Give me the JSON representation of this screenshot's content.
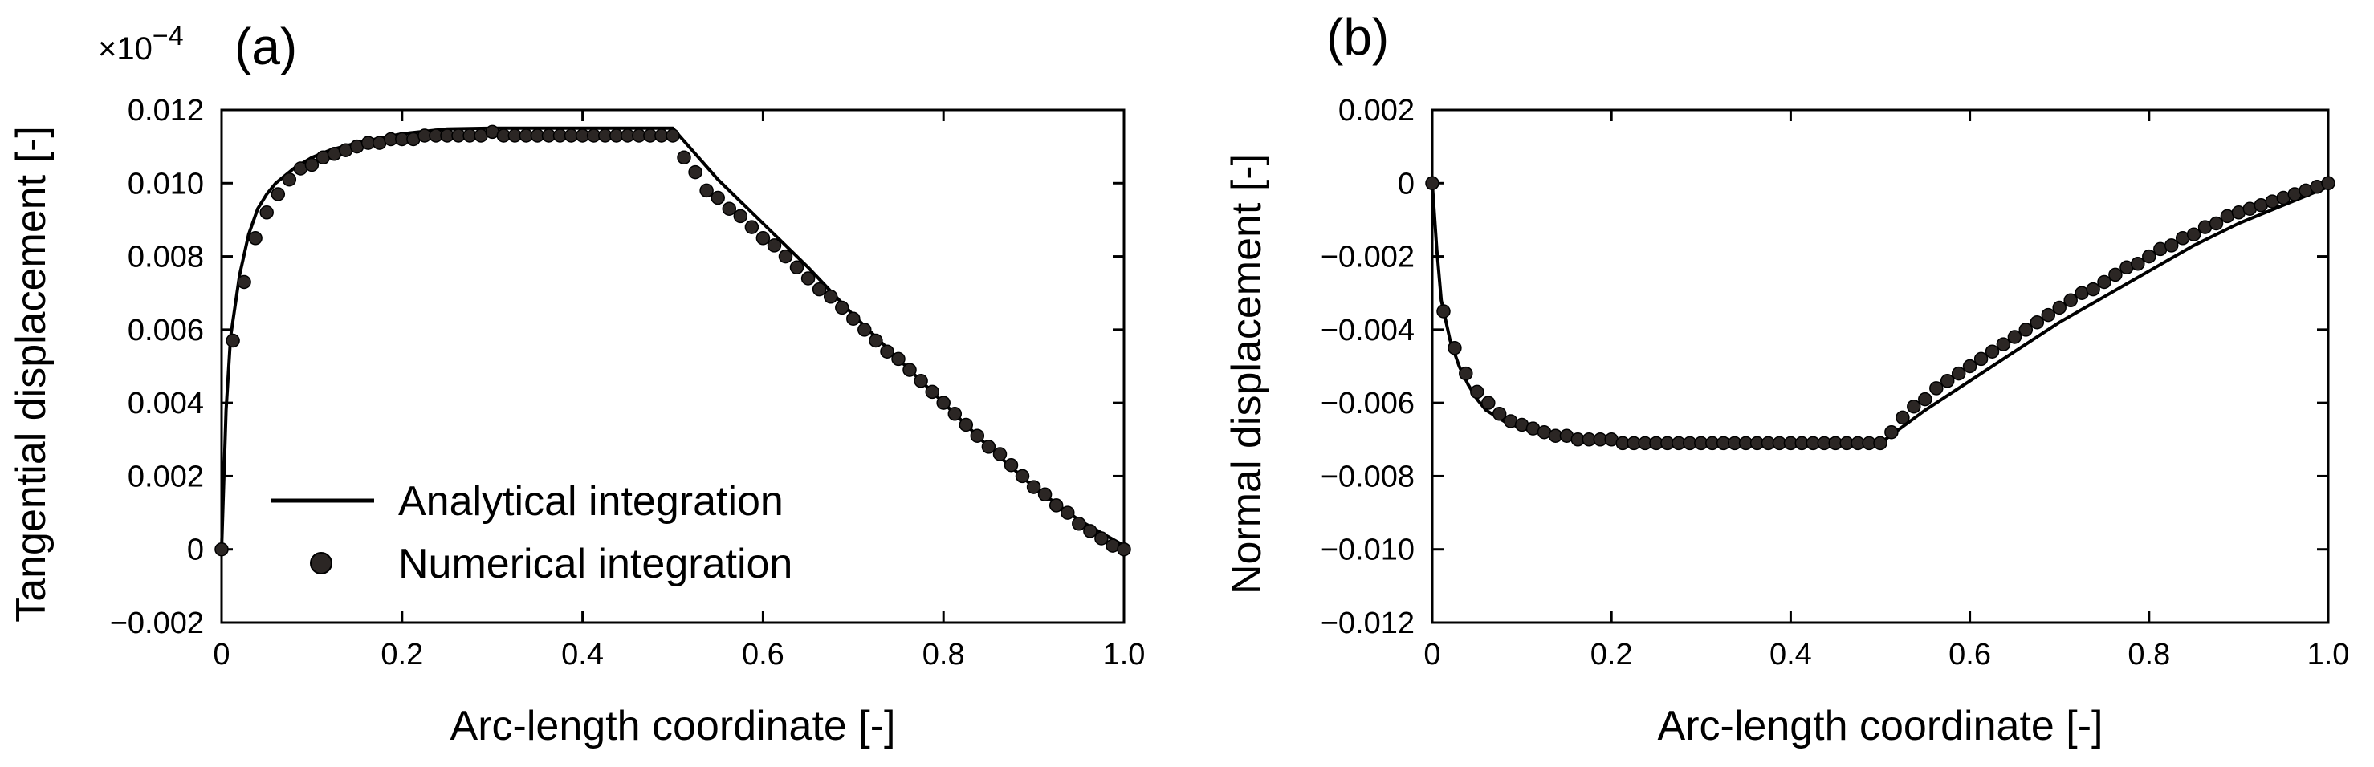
{
  "figure": {
    "panel_a_label": "(a)",
    "panel_b_label": "(b)",
    "multiplier_base": "×10",
    "multiplier_exponent": "−4"
  },
  "legend": {
    "analytical_label": "Analytical integration",
    "numerical_label": "Numerical integration"
  },
  "chart_data": [
    {
      "type": "line",
      "panel": "(a)",
      "title": "",
      "xlabel": "Arc-length coordinate [-]",
      "ylabel": "Tangential displacement [-]",
      "y_multiplier": "×10^-4",
      "xlim": [
        0,
        1.0
      ],
      "ylim": [
        -0.002,
        0.012
      ],
      "x_tick_labels": [
        "0",
        "0.2",
        "0.4",
        "0.6",
        "0.8",
        "1.0"
      ],
      "y_tick_labels": [
        "−0.002",
        "0",
        "0.002",
        "0.004",
        "0.006",
        "0.008",
        "0.010",
        "0.012"
      ],
      "grid": false,
      "legend_position": "bottom-left",
      "series": [
        {
          "name": "Analytical integration",
          "style": "line",
          "x": [
            0,
            0.005,
            0.01,
            0.02,
            0.03,
            0.04,
            0.05,
            0.06,
            0.08,
            0.1,
            0.12,
            0.15,
            0.2,
            0.25,
            0.3,
            0.35,
            0.4,
            0.45,
            0.49,
            0.5,
            0.55,
            0.6,
            0.65,
            0.7,
            0.75,
            0.8,
            0.85,
            0.9,
            0.95,
            1.0
          ],
          "y": [
            0,
            0.0038,
            0.0058,
            0.0075,
            0.0086,
            0.0093,
            0.0097,
            0.01,
            0.0104,
            0.0107,
            0.0109,
            0.0111,
            0.01135,
            0.01148,
            0.0115,
            0.0115,
            0.0115,
            0.0115,
            0.0115,
            0.0115,
            0.0101,
            0.0089,
            0.0077,
            0.0064,
            0.0052,
            0.004,
            0.0028,
            0.0017,
            0.0008,
            0.0001
          ]
        },
        {
          "name": "Numerical integration",
          "style": "markers",
          "x": [
            0,
            0.0125,
            0.025,
            0.0375,
            0.05,
            0.0625,
            0.075,
            0.0875,
            0.1,
            0.1125,
            0.125,
            0.1375,
            0.15,
            0.1625,
            0.175,
            0.1875,
            0.2,
            0.2125,
            0.225,
            0.2375,
            0.25,
            0.2625,
            0.275,
            0.2875,
            0.3,
            0.3125,
            0.325,
            0.3375,
            0.35,
            0.3625,
            0.375,
            0.3875,
            0.4,
            0.4125,
            0.425,
            0.4375,
            0.45,
            0.4625,
            0.475,
            0.4875,
            0.5,
            0.5125,
            0.525,
            0.5375,
            0.55,
            0.5625,
            0.575,
            0.5875,
            0.6,
            0.6125,
            0.625,
            0.6375,
            0.65,
            0.6625,
            0.675,
            0.6875,
            0.7,
            0.7125,
            0.725,
            0.7375,
            0.75,
            0.7625,
            0.775,
            0.7875,
            0.8,
            0.8125,
            0.825,
            0.8375,
            0.85,
            0.8625,
            0.875,
            0.8875,
            0.9,
            0.9125,
            0.925,
            0.9375,
            0.95,
            0.9625,
            0.975,
            0.9875,
            1.0
          ],
          "y": [
            0,
            0.0057,
            0.0073,
            0.0085,
            0.0092,
            0.0097,
            0.0101,
            0.0104,
            0.0105,
            0.0107,
            0.0108,
            0.0109,
            0.011,
            0.0111,
            0.0111,
            0.0112,
            0.0112,
            0.0112,
            0.0113,
            0.0113,
            0.0113,
            0.0113,
            0.0113,
            0.0113,
            0.0114,
            0.0113,
            0.0113,
            0.0113,
            0.0113,
            0.0113,
            0.0113,
            0.0113,
            0.0113,
            0.0113,
            0.0113,
            0.0113,
            0.0113,
            0.0113,
            0.0113,
            0.0113,
            0.0113,
            0.0107,
            0.0103,
            0.0098,
            0.0096,
            0.0093,
            0.0091,
            0.0088,
            0.0085,
            0.0083,
            0.008,
            0.0077,
            0.0074,
            0.0071,
            0.0069,
            0.0066,
            0.0063,
            0.006,
            0.0057,
            0.0054,
            0.0052,
            0.0049,
            0.0046,
            0.0043,
            0.004,
            0.0037,
            0.0034,
            0.0031,
            0.0028,
            0.0026,
            0.0023,
            0.002,
            0.0017,
            0.0015,
            0.0012,
            0.001,
            0.0007,
            0.0005,
            0.0003,
            0.0001,
            0.0
          ]
        }
      ]
    },
    {
      "type": "line",
      "panel": "(b)",
      "title": "",
      "xlabel": "Arc-length coordinate [-]",
      "ylabel": "Normal displacement [-]",
      "xlim": [
        0,
        1.0
      ],
      "ylim": [
        -0.012,
        0.002
      ],
      "x_tick_labels": [
        "0",
        "0.2",
        "0.4",
        "0.6",
        "0.8",
        "1.0"
      ],
      "y_tick_labels": [
        "−0.012",
        "−0.010",
        "−0.008",
        "−0.006",
        "−0.004",
        "−0.002",
        "0",
        "0.002"
      ],
      "grid": false,
      "series": [
        {
          "name": "Analytical integration",
          "style": "line",
          "x": [
            0,
            0.005,
            0.01,
            0.02,
            0.03,
            0.04,
            0.05,
            0.06,
            0.08,
            0.1,
            0.125,
            0.15,
            0.2,
            0.25,
            0.3,
            0.35,
            0.4,
            0.45,
            0.49,
            0.5,
            0.55,
            0.6,
            0.65,
            0.7,
            0.75,
            0.8,
            0.85,
            0.9,
            0.95,
            1.0
          ],
          "y": [
            0,
            -0.0018,
            -0.0032,
            -0.0043,
            -0.005,
            -0.0055,
            -0.0059,
            -0.0062,
            -0.0065,
            -0.0067,
            -0.0068,
            -0.0069,
            -0.007,
            -0.0071,
            -0.0071,
            -0.0071,
            -0.0071,
            -0.0071,
            -0.0071,
            -0.0071,
            -0.0062,
            -0.0054,
            -0.0046,
            -0.0038,
            -0.0031,
            -0.0024,
            -0.0017,
            -0.0011,
            -0.0006,
            -0.0001
          ]
        },
        {
          "name": "Numerical integration",
          "style": "markers",
          "x": [
            0,
            0.0125,
            0.025,
            0.0375,
            0.05,
            0.0625,
            0.075,
            0.0875,
            0.1,
            0.1125,
            0.125,
            0.1375,
            0.15,
            0.1625,
            0.175,
            0.1875,
            0.2,
            0.2125,
            0.225,
            0.2375,
            0.25,
            0.2625,
            0.275,
            0.2875,
            0.3,
            0.3125,
            0.325,
            0.3375,
            0.35,
            0.3625,
            0.375,
            0.3875,
            0.4,
            0.4125,
            0.425,
            0.4375,
            0.45,
            0.4625,
            0.475,
            0.4875,
            0.5,
            0.5125,
            0.525,
            0.5375,
            0.55,
            0.5625,
            0.575,
            0.5875,
            0.6,
            0.6125,
            0.625,
            0.6375,
            0.65,
            0.6625,
            0.675,
            0.6875,
            0.7,
            0.7125,
            0.725,
            0.7375,
            0.75,
            0.7625,
            0.775,
            0.7875,
            0.8,
            0.8125,
            0.825,
            0.8375,
            0.85,
            0.8625,
            0.875,
            0.8875,
            0.9,
            0.9125,
            0.925,
            0.9375,
            0.95,
            0.9625,
            0.975,
            0.9875,
            1.0
          ],
          "y": [
            0,
            -0.0035,
            -0.0045,
            -0.0052,
            -0.0057,
            -0.006,
            -0.0063,
            -0.0065,
            -0.0066,
            -0.0067,
            -0.0068,
            -0.0069,
            -0.0069,
            -0.007,
            -0.007,
            -0.007,
            -0.007,
            -0.0071,
            -0.0071,
            -0.0071,
            -0.0071,
            -0.0071,
            -0.0071,
            -0.0071,
            -0.0071,
            -0.0071,
            -0.0071,
            -0.0071,
            -0.0071,
            -0.0071,
            -0.0071,
            -0.0071,
            -0.0071,
            -0.0071,
            -0.0071,
            -0.0071,
            -0.0071,
            -0.0071,
            -0.0071,
            -0.0071,
            -0.0071,
            -0.0068,
            -0.0064,
            -0.0061,
            -0.0059,
            -0.0056,
            -0.0054,
            -0.0052,
            -0.005,
            -0.0048,
            -0.0046,
            -0.0044,
            -0.0042,
            -0.004,
            -0.0038,
            -0.0036,
            -0.0034,
            -0.0032,
            -0.003,
            -0.0029,
            -0.0027,
            -0.0025,
            -0.0023,
            -0.0022,
            -0.002,
            -0.0018,
            -0.0017,
            -0.0015,
            -0.0014,
            -0.0012,
            -0.0011,
            -0.0009,
            -0.0008,
            -0.0007,
            -0.0006,
            -0.0005,
            -0.0004,
            -0.0003,
            -0.0002,
            -0.0001,
            0.0
          ]
        }
      ]
    }
  ]
}
